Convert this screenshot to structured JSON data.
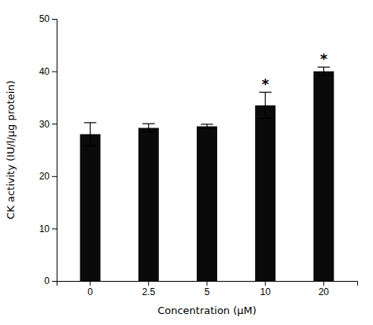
{
  "chart_data": {
    "type": "bar",
    "categories": [
      "0",
      "2.5",
      "5",
      "10",
      "20"
    ],
    "values": [
      28.0,
      29.2,
      29.5,
      33.5,
      40.0
    ],
    "errors": [
      2.2,
      0.8,
      0.4,
      2.5,
      0.8
    ],
    "color": "#0a0a0a",
    "xlabel": "Concentration (μM)",
    "ylabel": "CK activity (IU/l/μg protein)",
    "ylim": [
      0,
      50
    ],
    "yticks": [
      0,
      10,
      20,
      30,
      40,
      50
    ],
    "annotations": [
      {
        "text": "*",
        "category": "10"
      },
      {
        "text": "*",
        "category": "20"
      }
    ],
    "grid": false
  }
}
